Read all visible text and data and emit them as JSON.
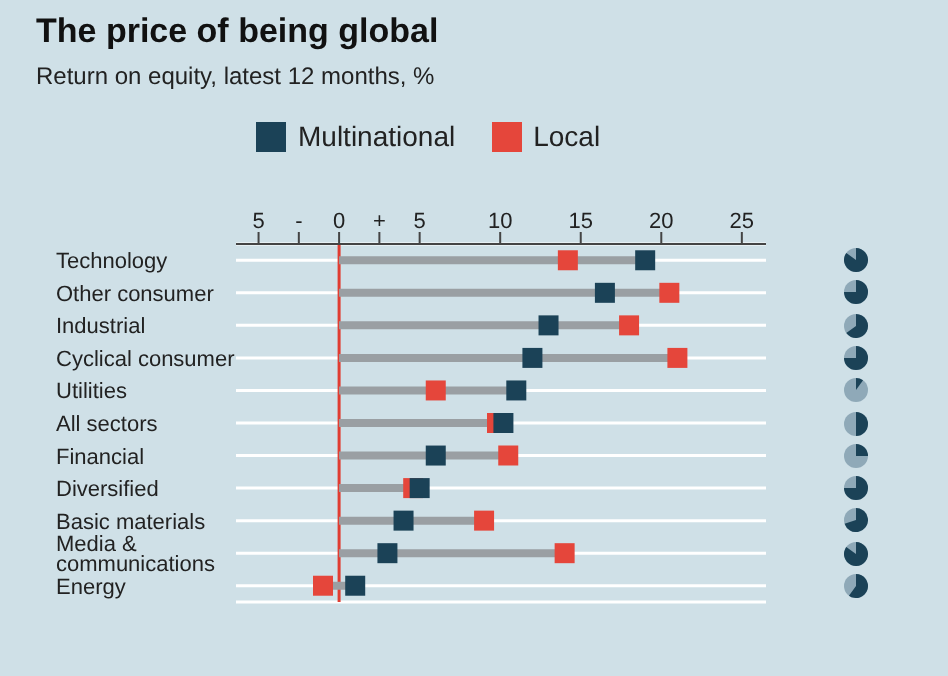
{
  "chart_data": {
    "type": "scatter",
    "title": "The price of being global",
    "subtitle": "Return on equity, latest 12 months, %",
    "categories": [
      "Technology",
      "Other consumer",
      "Industrial",
      "Cyclical consumer",
      "Utilities",
      "All sectors",
      "Financial",
      "Diversified",
      "Basic materials",
      "Media & communications",
      "Energy"
    ],
    "series": [
      {
        "name": "Multinational",
        "color": "#1b4257",
        "values": [
          19.0,
          16.5,
          13.0,
          12.0,
          11.0,
          10.2,
          6.0,
          5.0,
          4.0,
          3.0,
          1.0
        ]
      },
      {
        "name": "Local",
        "color": "#e5463b",
        "values": [
          14.2,
          20.5,
          18.0,
          21.0,
          6.0,
          9.8,
          10.5,
          4.6,
          9.0,
          14.0,
          -1.0
        ]
      }
    ],
    "xlim": [
      -6.4,
      26.5
    ],
    "xticks": [
      {
        "value": -5,
        "label": "5"
      },
      {
        "value": -2.5,
        "label": "-"
      },
      0,
      {
        "value": 2.5,
        "label": "+"
      },
      5,
      10,
      15,
      20,
      25
    ],
    "ref_lines": [
      {
        "axis": "x",
        "value": 0,
        "color": "#e03c31"
      }
    ],
    "orientation": "horizontal",
    "grid": "y",
    "legend": "top",
    "marker": "square"
  }
}
